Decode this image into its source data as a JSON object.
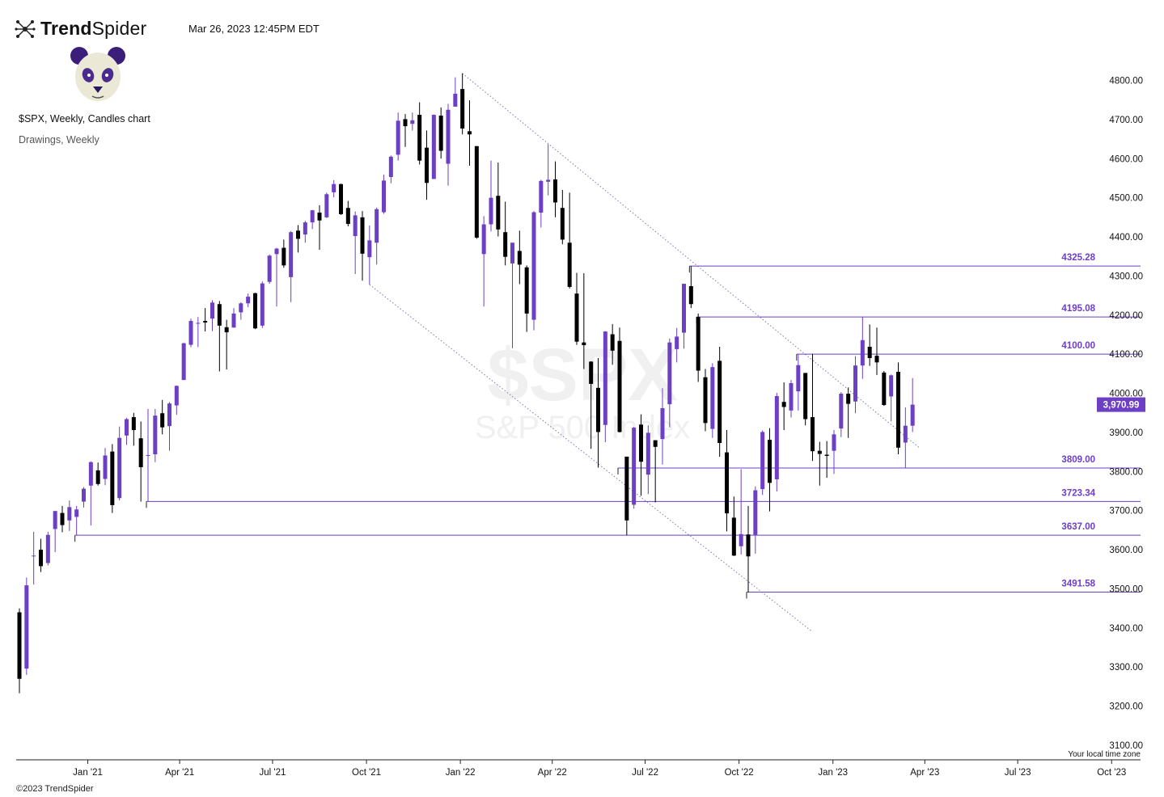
{
  "header": {
    "brand_bold": "Trend",
    "brand_regular": "Spider",
    "timestamp": "Mar 26, 2023 12:45PM EDT",
    "chart_title": "$SPX, Weekly, Candles chart",
    "drawings_label": "Drawings, Weekly"
  },
  "footer": {
    "copyright": "©2023 TrendSpider"
  },
  "colors": {
    "up": "#6c3fc4",
    "down": "#000000",
    "level_line": "#6c3fc4",
    "price_badge": "#6c3fc4",
    "watermark": "#f0f0f0"
  },
  "chart_data": {
    "type": "candlestick",
    "symbol": "$SPX",
    "watermark_symbol": "$SPX",
    "watermark_name": "S&P 500 Index",
    "timeframe": "Weekly",
    "ylim": [
      3100,
      4800
    ],
    "y_ticks": [
      "4800.00",
      "4700.00",
      "4600.00",
      "4500.00",
      "4400.00",
      "4300.00",
      "4200.00",
      "4100.00",
      "4000.00",
      "3900.00",
      "3800.00",
      "3700.00",
      "3600.00",
      "3500.00",
      "3400.00",
      "3300.00",
      "3200.00",
      "3100.00"
    ],
    "x_ticks": [
      {
        "label": "Jan '21",
        "date": "2021-01-01"
      },
      {
        "label": "Apr '21",
        "date": "2021-04-01"
      },
      {
        "label": "Jul '21",
        "date": "2021-07-01"
      },
      {
        "label": "Oct '21",
        "date": "2021-10-01"
      },
      {
        "label": "Jan '22",
        "date": "2022-01-01"
      },
      {
        "label": "Apr '22",
        "date": "2022-04-01"
      },
      {
        "label": "Jul '22",
        "date": "2022-07-01"
      },
      {
        "label": "Oct '22",
        "date": "2022-10-01"
      },
      {
        "label": "Jan '23",
        "date": "2023-01-01"
      },
      {
        "label": "Apr '23",
        "date": "2023-04-01"
      },
      {
        "label": "Jul '23",
        "date": "2023-07-01"
      },
      {
        "label": "Oct '23",
        "date": "2023-10-01"
      }
    ],
    "last_price_label": "3,970.99",
    "last_price": 3970.99,
    "time_zone_note": "Your local time zone",
    "levels": [
      {
        "label": "4325.28",
        "value": 4325.28,
        "start": "2022-08-15"
      },
      {
        "label": "4195.08",
        "value": 4195.08,
        "start": "2022-08-22"
      },
      {
        "label": "4100.00",
        "value": 4100.0,
        "start": "2022-11-28"
      },
      {
        "label": "3809.00",
        "value": 3809.0,
        "start": "2022-06-06"
      },
      {
        "label": "3723.34",
        "value": 3723.34,
        "start": "2021-03-01"
      },
      {
        "label": "3637.00",
        "value": 3637.0,
        "start": "2020-12-21"
      },
      {
        "label": "3491.58",
        "value": 3491.58,
        "start": "2022-10-10"
      }
    ],
    "trendlines": [
      {
        "style": "dotted",
        "from": {
          "date": "2022-01-03",
          "value": 4818
        },
        "to": {
          "date": "2023-03-27",
          "value": 3860
        }
      },
      {
        "style": "dotted",
        "from": {
          "date": "2021-10-04",
          "value": 4278
        },
        "to": {
          "date": "2022-12-12",
          "value": 3390
        }
      }
    ],
    "series": [
      {
        "date": "2020-10-26",
        "o": 3440,
        "h": 3450,
        "l": 3233,
        "c": 3270
      },
      {
        "date": "2020-11-02",
        "o": 3296,
        "h": 3529,
        "l": 3280,
        "c": 3509
      },
      {
        "date": "2020-11-09",
        "o": 3583,
        "h": 3646,
        "l": 3511,
        "c": 3585
      },
      {
        "date": "2020-11-16",
        "o": 3600,
        "h": 3628,
        "l": 3543,
        "c": 3558
      },
      {
        "date": "2020-11-23",
        "o": 3566,
        "h": 3646,
        "l": 3560,
        "c": 3638
      },
      {
        "date": "2020-11-30",
        "o": 3653,
        "h": 3699,
        "l": 3594,
        "c": 3699
      },
      {
        "date": "2020-12-07",
        "o": 3694,
        "h": 3712,
        "l": 3645,
        "c": 3663
      },
      {
        "date": "2020-12-14",
        "o": 3675,
        "h": 3726,
        "l": 3648,
        "c": 3709
      },
      {
        "date": "2020-12-21",
        "o": 3684,
        "h": 3712,
        "l": 3637,
        "c": 3703
      },
      {
        "date": "2020-12-28",
        "o": 3723,
        "h": 3760,
        "l": 3708,
        "c": 3756
      },
      {
        "date": "2021-01-04",
        "o": 3764,
        "h": 3826,
        "l": 3662,
        "c": 3824
      },
      {
        "date": "2021-01-11",
        "o": 3803,
        "h": 3823,
        "l": 3764,
        "c": 3768
      },
      {
        "date": "2021-01-18",
        "o": 3781,
        "h": 3860,
        "l": 3765,
        "c": 3841
      },
      {
        "date": "2021-01-25",
        "o": 3851,
        "h": 3870,
        "l": 3694,
        "c": 3714
      },
      {
        "date": "2021-02-01",
        "o": 3732,
        "h": 3915,
        "l": 3726,
        "c": 3886
      },
      {
        "date": "2021-02-08",
        "o": 3892,
        "h": 3937,
        "l": 3868,
        "c": 3934
      },
      {
        "date": "2021-02-15",
        "o": 3939,
        "h": 3950,
        "l": 3866,
        "c": 3906
      },
      {
        "date": "2021-02-22",
        "o": 3885,
        "h": 3928,
        "l": 3723,
        "c": 3811
      },
      {
        "date": "2021-03-01",
        "o": 3842,
        "h": 3960,
        "l": 3723,
        "c": 3842
      },
      {
        "date": "2021-03-08",
        "o": 3844,
        "h": 3960,
        "l": 3824,
        "c": 3943
      },
      {
        "date": "2021-03-15",
        "o": 3949,
        "h": 3983,
        "l": 3895,
        "c": 3913
      },
      {
        "date": "2021-03-22",
        "o": 3916,
        "h": 3978,
        "l": 3853,
        "c": 3974
      },
      {
        "date": "2021-03-29",
        "o": 3969,
        "h": 4020,
        "l": 3945,
        "c": 4019
      },
      {
        "date": "2021-04-05",
        "o": 4034,
        "h": 4129,
        "l": 4034,
        "c": 4128
      },
      {
        "date": "2021-04-12",
        "o": 4124,
        "h": 4191,
        "l": 4118,
        "c": 4185
      },
      {
        "date": "2021-04-19",
        "o": 4179,
        "h": 4195,
        "l": 4118,
        "c": 4180
      },
      {
        "date": "2021-04-26",
        "o": 4185,
        "h": 4218,
        "l": 4158,
        "c": 4181
      },
      {
        "date": "2021-05-03",
        "o": 4191,
        "h": 4238,
        "l": 4159,
        "c": 4232
      },
      {
        "date": "2021-05-10",
        "o": 4228,
        "h": 4236,
        "l": 4056,
        "c": 4173
      },
      {
        "date": "2021-05-17",
        "o": 4169,
        "h": 4188,
        "l": 4061,
        "c": 4156
      },
      {
        "date": "2021-05-24",
        "o": 4168,
        "h": 4218,
        "l": 4168,
        "c": 4204
      },
      {
        "date": "2021-05-31",
        "o": 4207,
        "h": 4233,
        "l": 4188,
        "c": 4230
      },
      {
        "date": "2021-06-07",
        "o": 4230,
        "h": 4255,
        "l": 4220,
        "c": 4247
      },
      {
        "date": "2021-06-14",
        "o": 4256,
        "h": 4257,
        "l": 4164,
        "c": 4166
      },
      {
        "date": "2021-06-21",
        "o": 4173,
        "h": 4286,
        "l": 4167,
        "c": 4281
      },
      {
        "date": "2021-06-28",
        "o": 4285,
        "h": 4355,
        "l": 4280,
        "c": 4352
      },
      {
        "date": "2021-07-05",
        "o": 4356,
        "h": 4372,
        "l": 4222,
        "c": 4370
      },
      {
        "date": "2021-07-12",
        "o": 4372,
        "h": 4393,
        "l": 4321,
        "c": 4327
      },
      {
        "date": "2021-07-19",
        "o": 4297,
        "h": 4415,
        "l": 4233,
        "c": 4412
      },
      {
        "date": "2021-07-26",
        "o": 4416,
        "h": 4430,
        "l": 4360,
        "c": 4395
      },
      {
        "date": "2021-08-02",
        "o": 4406,
        "h": 4441,
        "l": 4385,
        "c": 4437
      },
      {
        "date": "2021-08-09",
        "o": 4437,
        "h": 4469,
        "l": 4420,
        "c": 4468
      },
      {
        "date": "2021-08-16",
        "o": 4462,
        "h": 4481,
        "l": 4367,
        "c": 4442
      },
      {
        "date": "2021-08-23",
        "o": 4450,
        "h": 4513,
        "l": 4448,
        "c": 4509
      },
      {
        "date": "2021-08-30",
        "o": 4514,
        "h": 4545,
        "l": 4501,
        "c": 4535
      },
      {
        "date": "2021-09-06",
        "o": 4535,
        "h": 4536,
        "l": 4456,
        "c": 4458
      },
      {
        "date": "2021-09-13",
        "o": 4474,
        "h": 4492,
        "l": 4427,
        "c": 4433
      },
      {
        "date": "2021-09-20",
        "o": 4402,
        "h": 4465,
        "l": 4305,
        "c": 4455
      },
      {
        "date": "2021-09-27",
        "o": 4450,
        "h": 4466,
        "l": 4288,
        "c": 4357
      },
      {
        "date": "2021-10-04",
        "o": 4348,
        "h": 4429,
        "l": 4278,
        "c": 4391
      },
      {
        "date": "2021-10-11",
        "o": 4385,
        "h": 4475,
        "l": 4329,
        "c": 4471
      },
      {
        "date": "2021-10-18",
        "o": 4463,
        "h": 4559,
        "l": 4459,
        "c": 4544
      },
      {
        "date": "2021-10-25",
        "o": 4553,
        "h": 4608,
        "l": 4537,
        "c": 4605
      },
      {
        "date": "2021-11-01",
        "o": 4610,
        "h": 4718,
        "l": 4595,
        "c": 4697
      },
      {
        "date": "2021-11-08",
        "o": 4701,
        "h": 4714,
        "l": 4630,
        "c": 4683
      },
      {
        "date": "2021-11-15",
        "o": 4689,
        "h": 4718,
        "l": 4672,
        "c": 4698
      },
      {
        "date": "2021-11-22",
        "o": 4712,
        "h": 4744,
        "l": 4585,
        "c": 4595
      },
      {
        "date": "2021-11-29",
        "o": 4628,
        "h": 4672,
        "l": 4495,
        "c": 4538
      },
      {
        "date": "2021-12-06",
        "o": 4548,
        "h": 4713,
        "l": 4548,
        "c": 4712
      },
      {
        "date": "2021-12-13",
        "o": 4710,
        "h": 4731,
        "l": 4600,
        "c": 4620
      },
      {
        "date": "2021-12-20",
        "o": 4587,
        "h": 4740,
        "l": 4531,
        "c": 4725
      },
      {
        "date": "2021-12-27",
        "o": 4733,
        "h": 4808,
        "l": 4733,
        "c": 4766
      },
      {
        "date": "2022-01-03",
        "o": 4778,
        "h": 4818,
        "l": 4662,
        "c": 4677
      },
      {
        "date": "2022-01-10",
        "o": 4670,
        "h": 4749,
        "l": 4582,
        "c": 4662
      },
      {
        "date": "2022-01-17",
        "o": 4632,
        "h": 4632,
        "l": 4395,
        "c": 4398
      },
      {
        "date": "2022-01-24",
        "o": 4356,
        "h": 4453,
        "l": 4222,
        "c": 4432
      },
      {
        "date": "2022-01-31",
        "o": 4432,
        "h": 4595,
        "l": 4414,
        "c": 4500
      },
      {
        "date": "2022-02-07",
        "o": 4505,
        "h": 4590,
        "l": 4401,
        "c": 4419
      },
      {
        "date": "2022-02-14",
        "o": 4412,
        "h": 4490,
        "l": 4327,
        "c": 4349
      },
      {
        "date": "2022-02-21",
        "o": 4332,
        "h": 4385,
        "l": 4115,
        "c": 4385
      },
      {
        "date": "2022-02-28",
        "o": 4364,
        "h": 4416,
        "l": 4279,
        "c": 4329
      },
      {
        "date": "2022-03-07",
        "o": 4322,
        "h": 4327,
        "l": 4157,
        "c": 4204
      },
      {
        "date": "2022-03-14",
        "o": 4188,
        "h": 4466,
        "l": 4161,
        "c": 4463
      },
      {
        "date": "2022-03-21",
        "o": 4462,
        "h": 4546,
        "l": 4424,
        "c": 4543
      },
      {
        "date": "2022-03-28",
        "o": 4541,
        "h": 4637,
        "l": 4506,
        "c": 4546
      },
      {
        "date": "2022-04-04",
        "o": 4547,
        "h": 4593,
        "l": 4450,
        "c": 4488
      },
      {
        "date": "2022-04-11",
        "o": 4474,
        "h": 4520,
        "l": 4381,
        "c": 4393
      },
      {
        "date": "2022-04-18",
        "o": 4385,
        "h": 4513,
        "l": 4268,
        "c": 4272
      },
      {
        "date": "2022-04-25",
        "o": 4255,
        "h": 4308,
        "l": 4124,
        "c": 4132
      },
      {
        "date": "2022-05-02",
        "o": 4130,
        "h": 4307,
        "l": 4062,
        "c": 4123
      },
      {
        "date": "2022-05-09",
        "o": 4081,
        "h": 4082,
        "l": 3858,
        "c": 4024
      },
      {
        "date": "2022-05-16",
        "o": 4014,
        "h": 4090,
        "l": 3810,
        "c": 3901
      },
      {
        "date": "2022-05-23",
        "o": 3919,
        "h": 4159,
        "l": 3875,
        "c": 4158
      },
      {
        "date": "2022-05-30",
        "o": 4151,
        "h": 4177,
        "l": 4073,
        "c": 4109
      },
      {
        "date": "2022-06-06",
        "o": 4134,
        "h": 4168,
        "l": 3900,
        "c": 3901
      },
      {
        "date": "2022-06-13",
        "o": 3838,
        "h": 3838,
        "l": 3637,
        "c": 3675
      },
      {
        "date": "2022-06-20",
        "o": 3715,
        "h": 3914,
        "l": 3705,
        "c": 3912
      },
      {
        "date": "2022-06-27",
        "o": 3920,
        "h": 3946,
        "l": 3738,
        "c": 3825
      },
      {
        "date": "2022-07-04",
        "o": 3792,
        "h": 3918,
        "l": 3742,
        "c": 3899
      },
      {
        "date": "2022-07-11",
        "o": 3880,
        "h": 3880,
        "l": 3721,
        "c": 3863
      },
      {
        "date": "2022-07-18",
        "o": 3883,
        "h": 4013,
        "l": 3818,
        "c": 3962
      },
      {
        "date": "2022-07-25",
        "o": 3972,
        "h": 4140,
        "l": 3913,
        "c": 4130
      },
      {
        "date": "2022-08-01",
        "o": 4113,
        "h": 4167,
        "l": 4079,
        "c": 4145
      },
      {
        "date": "2022-08-08",
        "o": 4155,
        "h": 4280,
        "l": 4114,
        "c": 4280
      },
      {
        "date": "2022-08-15",
        "o": 4274,
        "h": 4325,
        "l": 4218,
        "c": 4228
      },
      {
        "date": "2022-08-22",
        "o": 4195,
        "h": 4204,
        "l": 4029,
        "c": 4058
      },
      {
        "date": "2022-08-29",
        "o": 4041,
        "h": 4062,
        "l": 3903,
        "c": 3924
      },
      {
        "date": "2022-09-05",
        "o": 3909,
        "h": 4077,
        "l": 3886,
        "c": 4067
      },
      {
        "date": "2022-09-12",
        "o": 4083,
        "h": 4119,
        "l": 3838,
        "c": 3873
      },
      {
        "date": "2022-09-19",
        "o": 3849,
        "h": 3906,
        "l": 3647,
        "c": 3693
      },
      {
        "date": "2022-09-26",
        "o": 3682,
        "h": 3736,
        "l": 3584,
        "c": 3585
      },
      {
        "date": "2022-10-03",
        "o": 3609,
        "h": 3806,
        "l": 3588,
        "c": 3640
      },
      {
        "date": "2022-10-10",
        "o": 3639,
        "h": 3712,
        "l": 3491,
        "c": 3583
      },
      {
        "date": "2022-10-17",
        "o": 3638,
        "h": 3762,
        "l": 3590,
        "c": 3752
      },
      {
        "date": "2022-10-24",
        "o": 3755,
        "h": 3905,
        "l": 3740,
        "c": 3901
      },
      {
        "date": "2022-10-31",
        "o": 3881,
        "h": 3911,
        "l": 3698,
        "c": 3771
      },
      {
        "date": "2022-11-07",
        "o": 3780,
        "h": 4001,
        "l": 3749,
        "c": 3993
      },
      {
        "date": "2022-11-14",
        "o": 3978,
        "h": 4028,
        "l": 3906,
        "c": 3965
      },
      {
        "date": "2022-11-21",
        "o": 3956,
        "h": 4034,
        "l": 3938,
        "c": 4026
      },
      {
        "date": "2022-11-28",
        "o": 4005,
        "h": 4100,
        "l": 3956,
        "c": 4072
      },
      {
        "date": "2022-12-05",
        "o": 4052,
        "h": 4052,
        "l": 3918,
        "c": 3934
      },
      {
        "date": "2022-12-12",
        "o": 3939,
        "h": 4101,
        "l": 3827,
        "c": 3852
      },
      {
        "date": "2022-12-19",
        "o": 3853,
        "h": 3876,
        "l": 3764,
        "c": 3845
      },
      {
        "date": "2022-12-26",
        "o": 3843,
        "h": 3878,
        "l": 3784,
        "c": 3840
      },
      {
        "date": "2023-01-02",
        "o": 3853,
        "h": 3906,
        "l": 3794,
        "c": 3895
      },
      {
        "date": "2023-01-09",
        "o": 3910,
        "h": 4003,
        "l": 3888,
        "c": 3999
      },
      {
        "date": "2023-01-16",
        "o": 3999,
        "h": 4015,
        "l": 3886,
        "c": 3973
      },
      {
        "date": "2023-01-23",
        "o": 3979,
        "h": 4095,
        "l": 3949,
        "c": 4071
      },
      {
        "date": "2023-01-30",
        "o": 4071,
        "h": 4195,
        "l": 4037,
        "c": 4136
      },
      {
        "date": "2023-02-06",
        "o": 4119,
        "h": 4176,
        "l": 4070,
        "c": 4090
      },
      {
        "date": "2023-02-13",
        "o": 4096,
        "h": 4168,
        "l": 4047,
        "c": 4079
      },
      {
        "date": "2023-02-20",
        "o": 4053,
        "h": 4057,
        "l": 3968,
        "c": 3970
      },
      {
        "date": "2023-02-27",
        "o": 3992,
        "h": 4048,
        "l": 3928,
        "c": 4046
      },
      {
        "date": "2023-03-06",
        "o": 4055,
        "h": 4079,
        "l": 3844,
        "c": 3861
      },
      {
        "date": "2023-03-13",
        "o": 3874,
        "h": 3964,
        "l": 3808,
        "c": 3917
      },
      {
        "date": "2023-03-20",
        "o": 3917,
        "h": 4039,
        "l": 3901,
        "c": 3971
      }
    ]
  }
}
